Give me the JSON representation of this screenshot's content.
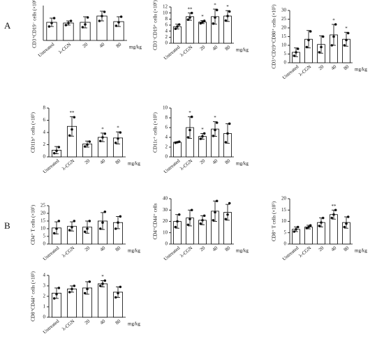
{
  "chart_data": [
    {
      "type": "bar",
      "panel": "A",
      "ylabel": "CD3⁺CD19⁻ cells (×10⁶)",
      "xlabel": "mg/kg",
      "categories": [
        "Untreated",
        "λ-CGN",
        "20",
        "40",
        "80"
      ],
      "values": [
        2.6,
        2.5,
        2.6,
        3.5,
        2.7
      ],
      "errors": [
        0.6,
        0.3,
        0.8,
        0.7,
        0.7
      ],
      "points": [
        [
          2.0,
          2.5,
          3.2
        ],
        [
          2.2,
          2.5,
          2.8
        ],
        [
          1.9,
          2.3,
          3.3
        ],
        [
          2.8,
          3.5,
          4.1
        ],
        [
          2.1,
          2.6,
          3.4
        ]
      ],
      "annotations": [
        null,
        null,
        null,
        null,
        null
      ],
      "ylim": [
        0,
        5
      ]
    },
    {
      "type": "bar",
      "ylabel": "CD3⁻CD19⁺ cells (×10⁶)",
      "xlabel": "mg/kg",
      "categories": [
        "Untreated",
        "λ-CGN",
        "20",
        "40",
        "80"
      ],
      "values": [
        5.5,
        8.8,
        7.0,
        8.8,
        9.0
      ],
      "errors": [
        0.8,
        1.2,
        0.5,
        2.5,
        1.8
      ],
      "points": [
        [
          4.8,
          5.5,
          6.2
        ],
        [
          7.8,
          8.5,
          10.0
        ],
        [
          6.6,
          7.0,
          7.4
        ],
        [
          6.5,
          8.5,
          11.0
        ],
        [
          7.5,
          9.0,
          10.5
        ]
      ],
      "annotations": [
        null,
        "**",
        "*",
        "*",
        "*"
      ],
      "ylim": [
        0,
        12
      ],
      "yticks": [
        0,
        2,
        4,
        6,
        8,
        10,
        12
      ]
    },
    {
      "type": "bar",
      "ylabel": "CD3⁺CD19⁺CD80⁺ cells (×10⁵)",
      "xlabel": "mg/kg",
      "categories": [
        "Untreated",
        "λ-CGN",
        "20",
        "40",
        "80"
      ],
      "values": [
        6,
        13.5,
        10.5,
        16,
        13.5
      ],
      "errors": [
        2.5,
        5,
        5,
        6,
        4
      ],
      "points": [
        [
          4,
          6,
          8
        ],
        [
          9,
          13,
          18
        ],
        [
          6,
          9,
          15
        ],
        [
          10,
          15,
          22
        ],
        [
          10,
          13,
          17
        ]
      ],
      "annotations": [
        null,
        null,
        null,
        "*",
        "*"
      ],
      "ylim": [
        0,
        30
      ],
      "yticks": [
        0,
        5,
        10,
        15,
        20,
        25,
        30
      ]
    },
    {
      "type": "bar",
      "ylabel": "CD11b⁺ cells (×10⁵)",
      "xlabel": "mg/kg",
      "categories": [
        "Untreated",
        "λ-CGN",
        "20",
        "40",
        "80"
      ],
      "values": [
        1.1,
        5.0,
        2.1,
        3.2,
        3.1
      ],
      "errors": [
        0.6,
        1.6,
        0.5,
        0.7,
        1.0
      ],
      "points": [
        [
          0.6,
          1.0,
          1.6
        ],
        [
          3.5,
          4.5,
          6.5
        ],
        [
          1.7,
          2.0,
          2.5
        ],
        [
          2.6,
          3.2,
          3.8
        ],
        [
          2.3,
          3.0,
          4.0
        ]
      ],
      "annotations": [
        null,
        "**",
        null,
        "*",
        "*"
      ],
      "ylim": [
        0,
        8
      ],
      "yticks": [
        0,
        2,
        4,
        6,
        8
      ]
    },
    {
      "type": "bar",
      "ylabel": "CD11c⁺ cells (×10⁵)",
      "xlabel": "mg/kg",
      "categories": [
        "Untreated",
        "λ-CGN",
        "20",
        "40",
        "80"
      ],
      "values": [
        3.0,
        6.0,
        4.2,
        5.7,
        4.8
      ],
      "errors": [
        0.1,
        2.2,
        0.6,
        1.5,
        2.0
      ],
      "points": [
        [
          2.9,
          3.0,
          3.1
        ],
        [
          4.0,
          5.5,
          8.2
        ],
        [
          3.7,
          4.2,
          4.8
        ],
        [
          4.3,
          5.5,
          7.0
        ],
        [
          3.0,
          4.8,
          6.8
        ]
      ],
      "annotations": [
        null,
        "*",
        "*",
        "*",
        null
      ],
      "ylim": [
        0,
        10
      ],
      "yticks": [
        0,
        2,
        4,
        6,
        8,
        10
      ]
    },
    {
      "type": "bar",
      "panel": "B",
      "ylabel": "CD4⁺ T cells (×10⁵)",
      "xlabel": "mg/kg",
      "categories": [
        "Untreated",
        "λ-CGN",
        "20",
        "40",
        "80"
      ],
      "values": [
        10.5,
        11.5,
        11,
        15,
        14
      ],
      "errors": [
        4,
        3,
        4,
        5.5,
        4
      ],
      "points": [
        [
          7,
          10,
          15
        ],
        [
          9,
          11,
          15
        ],
        [
          8,
          10,
          15
        ],
        [
          10,
          14,
          21
        ],
        [
          10,
          14,
          18
        ]
      ],
      "annotations": [
        null,
        null,
        null,
        null,
        null
      ],
      "ylim": [
        0,
        25
      ],
      "yticks": [
        0,
        5,
        10,
        15,
        20,
        25
      ]
    },
    {
      "type": "bar",
      "ylabel": "CD4⁺CD44⁺ cells",
      "xlabel": "mg/kg",
      "categories": [
        "Untreated",
        "λ-CGN",
        "20",
        "40",
        "80"
      ],
      "values": [
        20,
        23,
        21,
        29,
        28
      ],
      "errors": [
        6,
        7,
        4,
        9,
        7
      ],
      "points": [
        [
          15,
          20,
          26
        ],
        [
          17,
          22,
          30
        ],
        [
          18,
          21,
          25
        ],
        [
          21,
          28,
          38
        ],
        [
          22,
          26,
          36
        ]
      ],
      "annotations": [
        null,
        null,
        null,
        null,
        null
      ],
      "ylim": [
        0,
        40
      ],
      "yticks": [
        0,
        10,
        20,
        30,
        40
      ]
    },
    {
      "type": "bar",
      "ylabel": "CD8⁺ T cells (×10⁵)",
      "xlabel": "mg/kg",
      "categories": [
        "Untreated",
        "λ-CGN",
        "20",
        "40",
        "80"
      ],
      "values": [
        6.5,
        7.5,
        9.5,
        13,
        9.5
      ],
      "errors": [
        1,
        0.8,
        2,
        2,
        2.5
      ],
      "points": [
        [
          5.5,
          6.5,
          7.5
        ],
        [
          7,
          7.5,
          8.2
        ],
        [
          8,
          9.5,
          11.5
        ],
        [
          11.5,
          13,
          15
        ],
        [
          7.5,
          9,
          12
        ]
      ],
      "annotations": [
        null,
        null,
        null,
        "**",
        null
      ],
      "ylim": [
        0,
        20
      ],
      "yticks": [
        0,
        5,
        10,
        15,
        20
      ]
    },
    {
      "type": "bar",
      "ylabel": "CD8⁺CD44⁺ cells (×10⁵)",
      "xlabel": "mg/kg",
      "categories": [
        "Untreated",
        "λ-CGN",
        "20",
        "40",
        "80"
      ],
      "values": [
        2.3,
        2.7,
        2.8,
        3.2,
        2.4
      ],
      "errors": [
        0.5,
        0.3,
        0.6,
        0.3,
        0.5
      ],
      "points": [
        [
          1.8,
          2.2,
          2.8
        ],
        [
          2.4,
          2.7,
          3.0
        ],
        [
          2.3,
          2.7,
          3.4
        ],
        [
          3.0,
          3.2,
          3.5
        ],
        [
          1.9,
          2.3,
          2.9
        ]
      ],
      "annotations": [
        null,
        null,
        null,
        "*",
        null
      ],
      "ylim": [
        0,
        4
      ],
      "yticks": [
        0,
        1,
        2,
        3,
        4
      ]
    }
  ]
}
